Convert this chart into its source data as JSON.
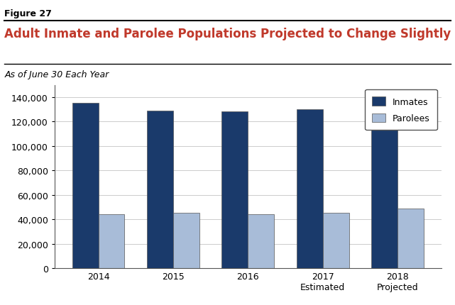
{
  "figure_label": "Figure 27",
  "title": "Adult Inmate and Parolee Populations Projected to Change Slightly",
  "subtitle": "As of June 30 Each Year",
  "categories": [
    "2014",
    "2015",
    "2016",
    "2017\nEstimated",
    "2018\nProjected"
  ],
  "inmates": [
    135500,
    129000,
    128500,
    130000,
    125000
  ],
  "parolees": [
    44500,
    45500,
    44000,
    45500,
    49000
  ],
  "inmate_color": "#1a3a6b",
  "parolee_color": "#a8bcd8",
  "bar_edge_color": "#555555",
  "ylim": [
    0,
    150000
  ],
  "yticks": [
    0,
    20000,
    40000,
    60000,
    80000,
    100000,
    120000,
    140000
  ],
  "ylabel": "",
  "legend_labels": [
    "Inmates",
    "Parolees"
  ],
  "title_color": "#c0392b",
  "figure_label_color": "#000000",
  "subtitle_color": "#000000",
  "background_color": "#ffffff",
  "grid_color": "#cccccc"
}
